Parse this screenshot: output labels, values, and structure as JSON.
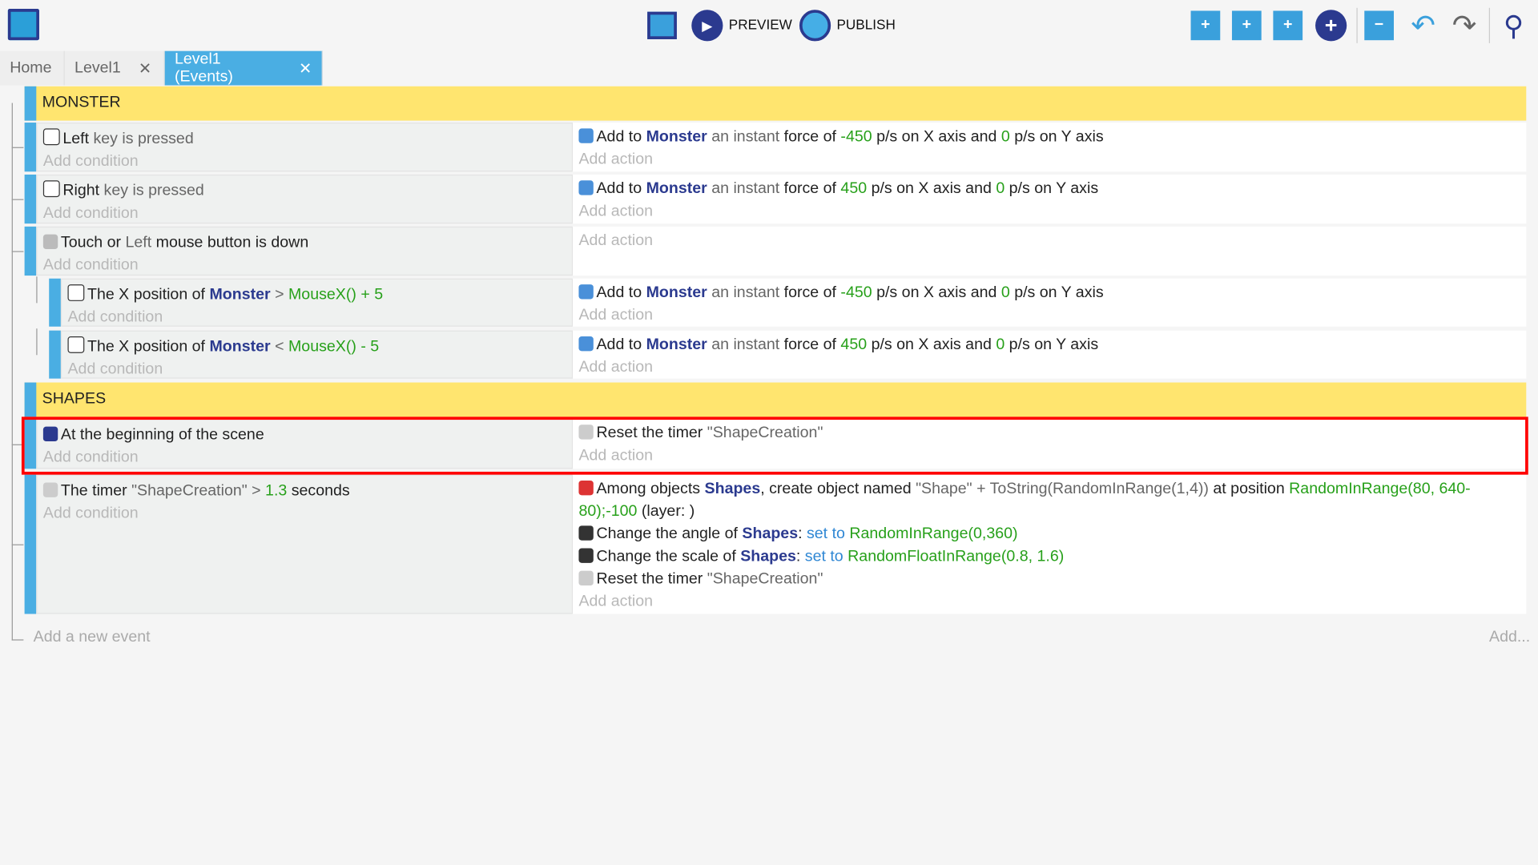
{
  "toolbar": {
    "preview": "PREVIEW",
    "publish": "PUBLISH",
    "icons": [
      "project-manager-icon",
      "debugger-icon",
      "preview-icon",
      "publish-icon",
      "add-event-icon",
      "add-sub-event-icon",
      "add-comment-icon",
      "add-more-icon",
      "delete-icon",
      "undo-icon",
      "redo-icon",
      "search-icon"
    ]
  },
  "tabs": [
    {
      "label": "Home"
    },
    {
      "label": "Level1",
      "close": "✕"
    },
    {
      "label": "Level1 (Events)",
      "close": "✕",
      "active": true
    }
  ],
  "colors": {
    "accent": "#4aaee3",
    "group": "#ffe56f",
    "object": "#2b3a8f",
    "number": "#27a01a",
    "selection": "#ff0000"
  },
  "groups": [
    {
      "title": "MONSTER"
    },
    {
      "title": "SHAPES"
    }
  ],
  "add_condition": "Add condition",
  "add_action": "Add action",
  "events": [
    {
      "conditions": [
        {
          "icon": "keyboard-icon",
          "segs": [
            [
              "t",
              "Left"
            ],
            [
              "g",
              " key is pressed"
            ]
          ]
        }
      ],
      "actions": [
        {
          "icon": "force-icon",
          "segs": [
            [
              "t",
              "Add to "
            ],
            [
              "o",
              "Monster"
            ],
            [
              "g",
              " an instant "
            ],
            [
              "t",
              "force of "
            ],
            [
              "n",
              "-450"
            ],
            [
              "t",
              " p/s on X axis and "
            ],
            [
              "n",
              "0"
            ],
            [
              "t",
              " p/s on Y axis"
            ]
          ]
        }
      ]
    },
    {
      "conditions": [
        {
          "icon": "keyboard-icon",
          "segs": [
            [
              "t",
              "Right"
            ],
            [
              "g",
              " key is pressed"
            ]
          ]
        }
      ],
      "actions": [
        {
          "icon": "force-icon",
          "segs": [
            [
              "t",
              "Add to "
            ],
            [
              "o",
              "Monster"
            ],
            [
              "g",
              " an instant "
            ],
            [
              "t",
              "force of "
            ],
            [
              "n",
              "450"
            ],
            [
              "t",
              " p/s on X axis and "
            ],
            [
              "n",
              "0"
            ],
            [
              "t",
              " p/s on Y axis"
            ]
          ]
        }
      ]
    },
    {
      "conditions": [
        {
          "icon": "mouse-icon",
          "segs": [
            [
              "t",
              "Touch or "
            ],
            [
              "g",
              "Left"
            ],
            [
              "t",
              " mouse button is down"
            ]
          ]
        }
      ],
      "actions": []
    },
    {
      "sub": true,
      "conditions": [
        {
          "icon": "position-icon",
          "segs": [
            [
              "t",
              "The X position of "
            ],
            [
              "o",
              "Monster"
            ],
            [
              "g",
              "  >  "
            ],
            [
              "n",
              "MouseX() + 5"
            ]
          ]
        }
      ],
      "actions": [
        {
          "icon": "force-icon",
          "segs": [
            [
              "t",
              "Add to "
            ],
            [
              "o",
              "Monster"
            ],
            [
              "g",
              " an instant "
            ],
            [
              "t",
              "force of "
            ],
            [
              "n",
              "-450"
            ],
            [
              "t",
              " p/s on X axis and "
            ],
            [
              "n",
              "0"
            ],
            [
              "t",
              " p/s on Y axis"
            ]
          ]
        }
      ]
    },
    {
      "sub": true,
      "conditions": [
        {
          "icon": "position-icon",
          "segs": [
            [
              "t",
              "The X position of "
            ],
            [
              "o",
              "Monster"
            ],
            [
              "g",
              "  <  "
            ],
            [
              "n",
              "MouseX() - 5"
            ]
          ]
        }
      ],
      "actions": [
        {
          "icon": "force-icon",
          "segs": [
            [
              "t",
              "Add to "
            ],
            [
              "o",
              "Monster"
            ],
            [
              "g",
              " an instant "
            ],
            [
              "t",
              "force of "
            ],
            [
              "n",
              "450"
            ],
            [
              "t",
              " p/s on X axis and "
            ],
            [
              "n",
              "0"
            ],
            [
              "t",
              " p/s on Y axis"
            ]
          ]
        }
      ]
    },
    {
      "selected": true,
      "conditions": [
        {
          "icon": "scene-start-icon",
          "segs": [
            [
              "t",
              "At the beginning of the scene"
            ]
          ]
        }
      ],
      "actions": [
        {
          "icon": "timer-icon",
          "segs": [
            [
              "t",
              "Reset the timer "
            ],
            [
              "g",
              "\"ShapeCreation\""
            ]
          ]
        }
      ]
    },
    {
      "conditions": [
        {
          "icon": "timer-icon",
          "segs": [
            [
              "t",
              "The timer "
            ],
            [
              "g",
              "\"ShapeCreation\"  >  "
            ],
            [
              "n",
              "1.3"
            ],
            [
              "t",
              " seconds"
            ]
          ]
        }
      ],
      "actions": [
        {
          "icon": "create-object-icon",
          "segs": [
            [
              "t",
              "Among objects "
            ],
            [
              "o",
              "Shapes"
            ],
            [
              "t",
              ", create object named "
            ],
            [
              "g",
              "\"Shape\" + ToString(RandomInRange(1,4))"
            ],
            [
              "t",
              " at position "
            ],
            [
              "n",
              "RandomInRange(80, 640-80);-100"
            ],
            [
              "t",
              " (layer: )"
            ]
          ]
        },
        {
          "icon": "angle-icon",
          "segs": [
            [
              "t",
              "Change the angle of "
            ],
            [
              "o",
              "Shapes"
            ],
            [
              "t",
              ": "
            ],
            [
              "p",
              "set to "
            ],
            [
              "n",
              " RandomInRange(0,360)"
            ]
          ]
        },
        {
          "icon": "scale-icon",
          "segs": [
            [
              "t",
              "Change the scale of "
            ],
            [
              "o",
              "Shapes"
            ],
            [
              "t",
              ": "
            ],
            [
              "p",
              "set to "
            ],
            [
              "n",
              " RandomFloatInRange(0.8, 1.6)"
            ]
          ]
        },
        {
          "icon": "timer-icon",
          "segs": [
            [
              "t",
              "Reset the timer "
            ],
            [
              "g",
              "\"ShapeCreation\""
            ]
          ]
        }
      ]
    }
  ],
  "footer": {
    "add_event": "Add a new event",
    "add_more": "Add..."
  }
}
